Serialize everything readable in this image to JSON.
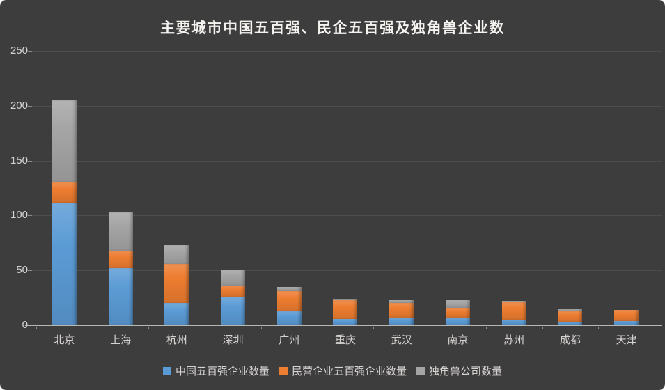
{
  "page": {
    "background": "#FFFFFF"
  },
  "chart": {
    "background": "#3E3D3D",
    "title_color": "#F5F3F0",
    "text_color": "#D6D4D2",
    "gridline_color": "#4E4D4D",
    "axis_line_color": "#B9B7B4"
  },
  "chart_data": {
    "type": "bar",
    "stacked": true,
    "title": "主要城市中国五百强、民企五百强及独角兽企业数",
    "categories": [
      "北京",
      "上海",
      "杭州",
      "深圳",
      "广州",
      "重庆",
      "武汉",
      "南京",
      "苏州",
      "成都",
      "天津"
    ],
    "series": [
      {
        "name": "中国五百强企业数量",
        "color": "#5B9BD5",
        "values": [
          112,
          52,
          20,
          26,
          13,
          6,
          7,
          7,
          5,
          3,
          4
        ]
      },
      {
        "name": "民营企业五百强企业数量",
        "color": "#ED7D31",
        "values": [
          19,
          16,
          36,
          10,
          18,
          17,
          13,
          9,
          16,
          10,
          10
        ]
      },
      {
        "name": "独角兽公司数量",
        "color": "#A5A5A5",
        "values": [
          74,
          35,
          17,
          15,
          4,
          1,
          3,
          7,
          1,
          2,
          0
        ]
      }
    ],
    "totals": [
      205,
      103,
      73,
      51,
      35,
      24,
      23,
      23,
      22,
      15,
      14
    ],
    "xlabel": "",
    "ylabel": "",
    "ylim": [
      0,
      250
    ],
    "y_ticks": [
      0,
      50,
      100,
      150,
      200,
      250
    ],
    "grid": true,
    "legend_position": "bottom"
  }
}
